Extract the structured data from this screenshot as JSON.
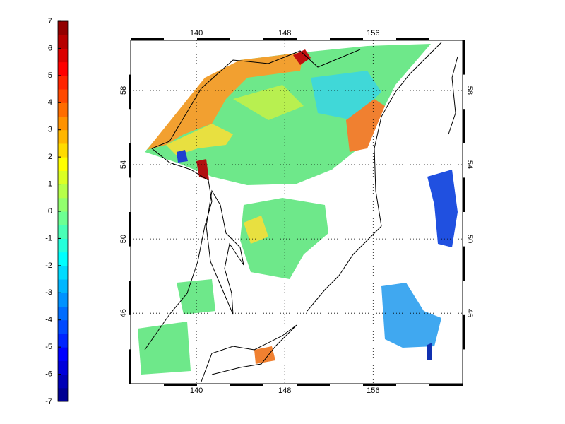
{
  "colorbar": {
    "limits": [
      -7,
      7
    ],
    "ticks": [
      -7,
      -6,
      -5,
      -4,
      -3,
      -2,
      -1,
      0,
      1,
      2,
      3,
      4,
      5,
      6,
      7
    ]
  },
  "map": {
    "xlim": [
      134.05,
      164.1
    ],
    "ylim": [
      42.2,
      60.7
    ],
    "xticks": [
      140,
      148,
      156
    ],
    "yticks": [
      46,
      50,
      54,
      58
    ]
  }
}
